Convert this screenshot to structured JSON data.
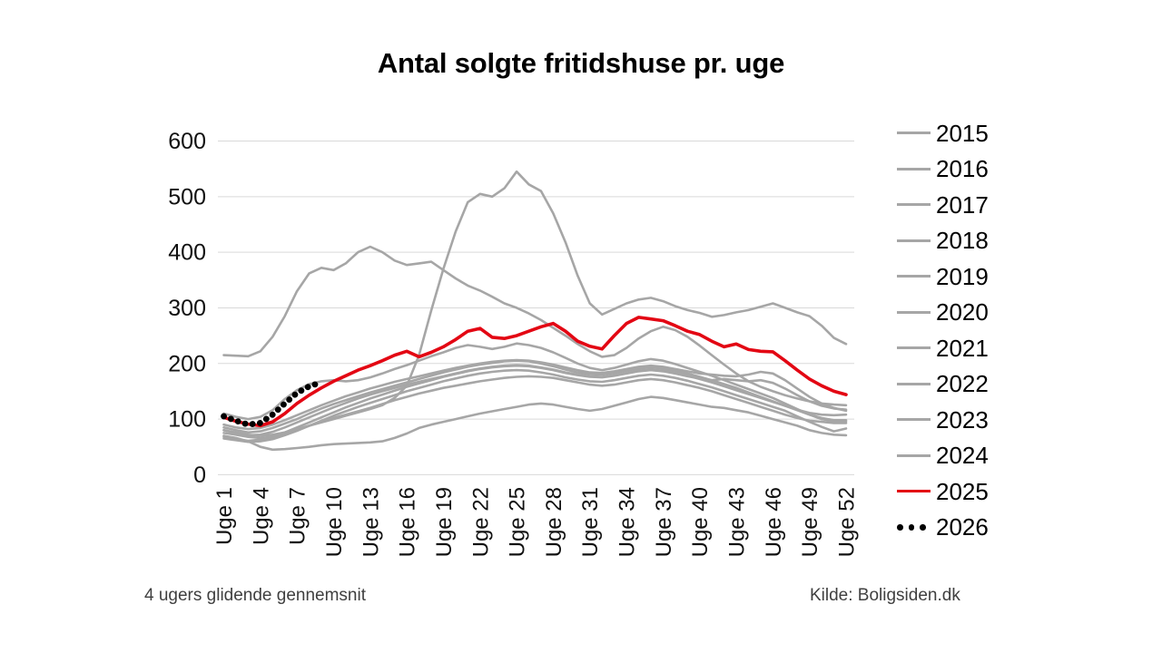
{
  "title": "Antal solgte fritidshuse pr. uge",
  "footnote": "4 ugers glidende gennemsnit",
  "source": "Kilde: Boligsiden.dk",
  "colors": {
    "gray_series": "#a6a6a6",
    "highlight_series": "#e30613",
    "forecast_series": "#000000",
    "gridline": "#d9d9d9",
    "axis_text": "#111111",
    "footnote_text": "#3f3f3f"
  },
  "chart_data": {
    "type": "line",
    "title": "Antal solgte fritidshuse pr. uge",
    "xlabel": "",
    "ylabel": "",
    "ylim": [
      0,
      600
    ],
    "y_ticks": [
      0,
      100,
      200,
      300,
      400,
      500,
      600
    ],
    "x_tick_labels": [
      "Uge 1",
      "Uge 4",
      "Uge 7",
      "Uge 10",
      "Uge 13",
      "Uge 16",
      "Uge 19",
      "Uge 22",
      "Uge 25",
      "Uge 28",
      "Uge 31",
      "Uge 34",
      "Uge 37",
      "Uge 40",
      "Uge 43",
      "Uge 46",
      "Uge 49",
      "Uge 52"
    ],
    "x_unit": "uge",
    "weeks": 52,
    "grid": "horizontal",
    "legend_position": "right",
    "series": [
      {
        "name": "2015",
        "color": "#a6a6a6",
        "style": "solid",
        "values": [
          70,
          66,
          60,
          50,
          45,
          46,
          48,
          50,
          53,
          55,
          56,
          57,
          58,
          60,
          66,
          74,
          84,
          90,
          95,
          100,
          105,
          110,
          114,
          118,
          122,
          126,
          128,
          126,
          122,
          118,
          115,
          118,
          124,
          130,
          136,
          140,
          138,
          134,
          130,
          126,
          122,
          120,
          116,
          112,
          106,
          100,
          94,
          88,
          80,
          75,
          72,
          71
        ]
      },
      {
        "name": "2016",
        "color": "#a6a6a6",
        "style": "solid",
        "values": [
          75,
          72,
          68,
          66,
          68,
          73,
          80,
          88,
          95,
          102,
          108,
          114,
          120,
          127,
          134,
          140,
          146,
          151,
          156,
          160,
          164,
          168,
          171,
          174,
          176,
          177,
          176,
          174,
          170,
          166,
          162,
          160,
          162,
          166,
          170,
          172,
          170,
          166,
          161,
          156,
          150,
          143,
          136,
          129,
          122,
          115,
          108,
          102,
          97,
          95,
          93,
          93
        ]
      },
      {
        "name": "2017",
        "color": "#a6a6a6",
        "style": "solid",
        "values": [
          85,
          80,
          76,
          78,
          84,
          92,
          100,
          110,
          119,
          127,
          134,
          141,
          148,
          154,
          160,
          166,
          172,
          178,
          184,
          189,
          194,
          198,
          201,
          204,
          205,
          204,
          200,
          195,
          189,
          184,
          181,
          180,
          183,
          187,
          191,
          193,
          191,
          187,
          182,
          176,
          170,
          163,
          156,
          148,
          140,
          132,
          124,
          116,
          108,
          102,
          98,
          98
        ]
      },
      {
        "name": "2018",
        "color": "#a6a6a6",
        "style": "solid",
        "values": [
          80,
          75,
          71,
          72,
          77,
          85,
          94,
          103,
          112,
          121,
          129,
          137,
          144,
          150,
          156,
          162,
          167,
          172,
          177,
          182,
          187,
          191,
          194,
          196,
          197,
          196,
          193,
          189,
          184,
          180,
          177,
          176,
          179,
          183,
          187,
          189,
          187,
          183,
          178,
          172,
          166,
          159,
          152,
          145,
          138,
          131,
          124,
          117,
          111,
          108,
          107,
          108
        ]
      },
      {
        "name": "2019",
        "color": "#a6a6a6",
        "style": "solid",
        "values": [
          90,
          85,
          82,
          84,
          90,
          98,
          107,
          116,
          125,
          133,
          141,
          148,
          155,
          161,
          167,
          172,
          177,
          182,
          187,
          192,
          196,
          200,
          203,
          205,
          206,
          205,
          202,
          198,
          193,
          188,
          184,
          183,
          186,
          190,
          194,
          196,
          194,
          190,
          186,
          182,
          180,
          178,
          177,
          180,
          185,
          182,
          170,
          155,
          140,
          128,
          120,
          115
        ]
      },
      {
        "name": "2020",
        "color": "#a6a6a6",
        "style": "solid",
        "values": [
          80,
          76,
          72,
          70,
          72,
          76,
          82,
          88,
          94,
          100,
          106,
          112,
          118,
          125,
          138,
          160,
          215,
          295,
          370,
          437,
          490,
          505,
          500,
          515,
          545,
          522,
          510,
          470,
          418,
          358,
          308,
          288,
          298,
          308,
          315,
          318,
          312,
          303,
          296,
          291,
          284,
          287,
          292,
          296,
          302,
          308,
          300,
          292,
          285,
          268,
          246,
          235
        ]
      },
      {
        "name": "2021",
        "color": "#a6a6a6",
        "style": "solid",
        "values": [
          215,
          214,
          213,
          222,
          248,
          285,
          330,
          362,
          372,
          368,
          380,
          400,
          410,
          400,
          385,
          377,
          380,
          383,
          368,
          353,
          340,
          331,
          320,
          308,
          300,
          290,
          278,
          264,
          250,
          235,
          222,
          212,
          215,
          228,
          245,
          258,
          266,
          260,
          248,
          232,
          215,
          198,
          182,
          168,
          158,
          150,
          143,
          137,
          132,
          128,
          126,
          125
        ]
      },
      {
        "name": "2022",
        "color": "#a6a6a6",
        "style": "solid",
        "values": [
          110,
          104,
          100,
          104,
          116,
          136,
          152,
          163,
          168,
          170,
          168,
          170,
          175,
          182,
          190,
          197,
          205,
          213,
          220,
          228,
          233,
          230,
          226,
          230,
          236,
          233,
          228,
          220,
          210,
          200,
          192,
          188,
          192,
          198,
          204,
          208,
          205,
          199,
          192,
          185,
          178,
          170,
          162,
          154,
          146,
          138,
          128,
          118,
          108,
          100,
          96,
          96
        ]
      },
      {
        "name": "2023",
        "color": "#a6a6a6",
        "style": "solid",
        "values": [
          65,
          62,
          59,
          60,
          64,
          71,
          79,
          88,
          97,
          106,
          114,
          122,
          129,
          136,
          143,
          150,
          156,
          162,
          168,
          173,
          178,
          182,
          185,
          187,
          188,
          187,
          184,
          180,
          175,
          171,
          168,
          167,
          170,
          174,
          178,
          180,
          178,
          174,
          169,
          163,
          157,
          150,
          143,
          136,
          129,
          122,
          115,
          105,
          95,
          86,
          78,
          83
        ]
      },
      {
        "name": "2024",
        "color": "#a6a6a6",
        "style": "solid",
        "values": [
          68,
          64,
          61,
          63,
          68,
          76,
          85,
          94,
          103,
          112,
          121,
          129,
          137,
          144,
          151,
          158,
          164,
          170,
          176,
          181,
          186,
          190,
          193,
          195,
          196,
          195,
          192,
          188,
          183,
          179,
          176,
          175,
          178,
          182,
          186,
          188,
          186,
          182,
          177,
          173,
          170,
          172,
          170,
          168,
          170,
          165,
          155,
          143,
          132,
          124,
          119,
          117
        ]
      },
      {
        "name": "2025",
        "color": "#e30613",
        "style": "solid",
        "emphasis": true,
        "values": [
          103,
          96,
          91,
          88,
          95,
          110,
          128,
          143,
          156,
          168,
          178,
          188,
          196,
          205,
          215,
          222,
          212,
          220,
          230,
          243,
          258,
          263,
          247,
          245,
          250,
          258,
          266,
          272,
          258,
          240,
          231,
          226,
          250,
          272,
          283,
          280,
          277,
          268,
          258,
          252,
          240,
          230,
          235,
          225,
          222,
          221,
          205,
          188,
          172,
          160,
          150,
          144
        ]
      },
      {
        "name": "2026",
        "color": "#000000",
        "style": "dotted",
        "values": [
          105,
          97,
          90,
          93,
          108,
          128,
          147,
          159,
          166
        ]
      }
    ]
  }
}
